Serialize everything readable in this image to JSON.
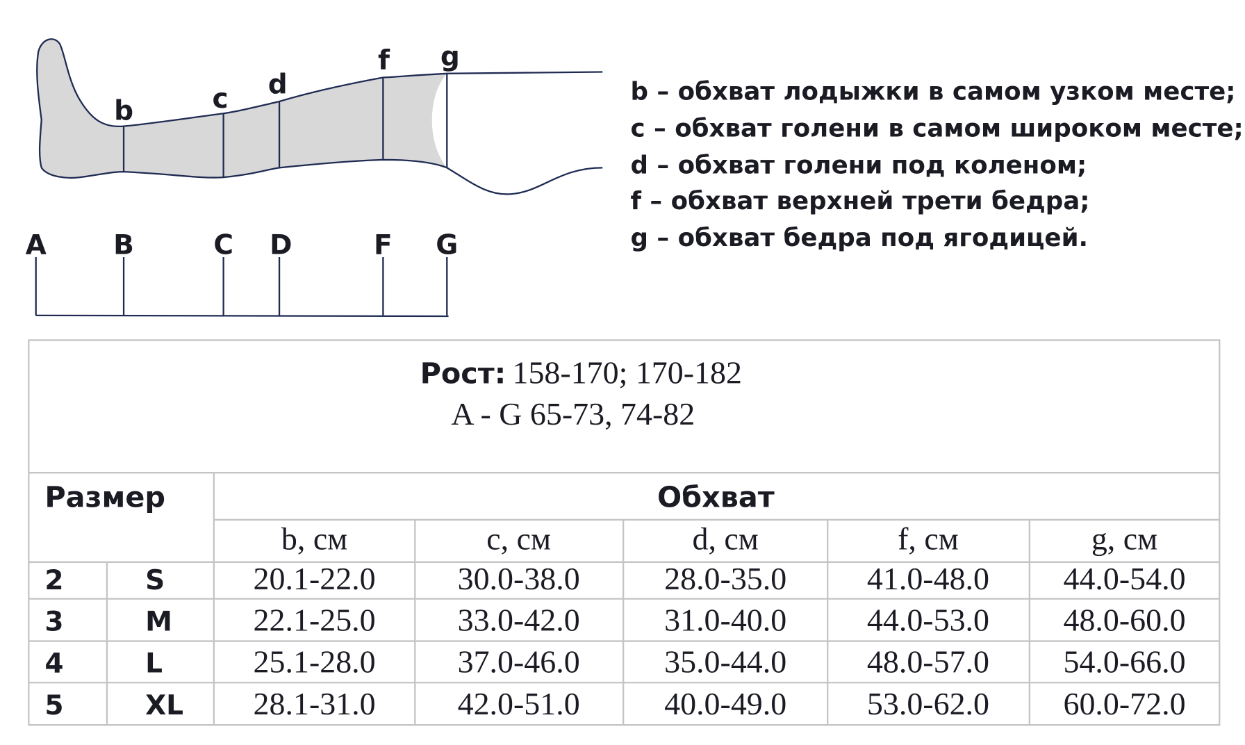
{
  "diagram": {
    "girth_points": [
      "b",
      "c",
      "d",
      "f",
      "g"
    ],
    "length_points": [
      "A",
      "B",
      "C",
      "D",
      "F",
      "G"
    ],
    "legend": [
      "b – обхват лодыжки в самом узком месте;",
      "c – обхват голени в самом широком месте;",
      "d – обхват голени под коленом;",
      "f – обхват верхней трети бедра;",
      "g – обхват бедра под ягодицей."
    ]
  },
  "table": {
    "height_label": "Рост:",
    "height_value": "158-170; 170-182",
    "length_value": "A - G 65-73, 74-82",
    "size_header": "Размер",
    "girth_header": "Обхват",
    "columns": [
      "b, см",
      "c, см",
      "d, см",
      "f, см",
      "g, см"
    ],
    "rows": [
      [
        "2",
        "S",
        "20.1-22.0",
        "30.0-38.0",
        "28.0-35.0",
        "41.0-48.0",
        "44.0-54.0"
      ],
      [
        "3",
        "M",
        "22.1-25.0",
        "33.0-42.0",
        "31.0-40.0",
        "44.0-53.0",
        "48.0-60.0"
      ],
      [
        "4",
        "L",
        "25.1-28.0",
        "37.0-46.0",
        "35.0-44.0",
        "48.0-57.0",
        "54.0-66.0"
      ],
      [
        "5",
        "XL",
        "28.1-31.0",
        "42.0-51.0",
        "40.0-49.0",
        "53.0-62.0",
        "60.0-72.0"
      ]
    ]
  }
}
